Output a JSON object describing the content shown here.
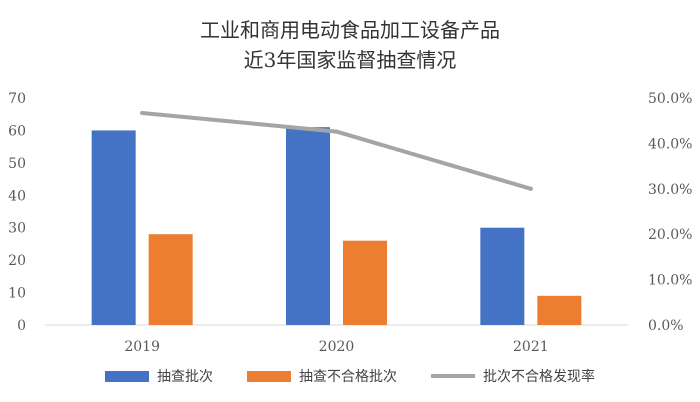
{
  "chart_data": {
    "type": "bar",
    "title": "工业和商用电动食品加工设备产品",
    "subtitle": "近3年国家监督抽查情况",
    "categories": [
      "2019",
      "2020",
      "2021"
    ],
    "series": [
      {
        "name": "抽查批次",
        "type": "bar",
        "axis": "left",
        "color": "#4472C4",
        "values": [
          60,
          61,
          30
        ]
      },
      {
        "name": "抽查不合格批次",
        "type": "bar",
        "axis": "left",
        "color": "#ED7D31",
        "values": [
          28,
          26,
          9
        ]
      },
      {
        "name": "批次不合格发现率",
        "type": "line",
        "axis": "right",
        "color": "#A5A5A5",
        "values": [
          46.7,
          42.6,
          30.0
        ]
      }
    ],
    "y_left": {
      "min": 0,
      "max": 70,
      "ticks": [
        "0",
        "10",
        "20",
        "30",
        "40",
        "50",
        "60",
        "70"
      ]
    },
    "y_right": {
      "min": 0,
      "max": 50,
      "ticks": [
        "0.0%",
        "10.0%",
        "20.0%",
        "30.0%",
        "40.0%",
        "50.0%"
      ]
    },
    "grid": false,
    "legend_position": "bottom"
  }
}
